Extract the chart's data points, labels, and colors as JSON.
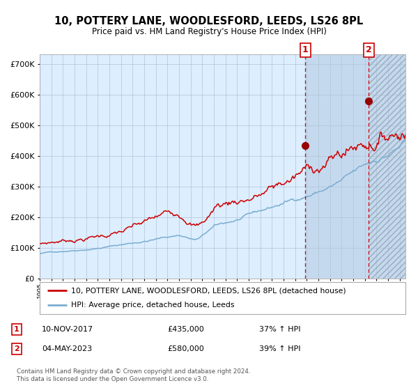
{
  "title": "10, POTTERY LANE, WOODLESFORD, LEEDS, LS26 8PL",
  "subtitle": "Price paid vs. HM Land Registry's House Price Index (HPI)",
  "legend_line1": "10, POTTERY LANE, WOODLESFORD, LEEDS, LS26 8PL (detached house)",
  "legend_line2": "HPI: Average price, detached house, Leeds",
  "footnote": "Contains HM Land Registry data © Crown copyright and database right 2024.\nThis data is licensed under the Open Government Licence v3.0.",
  "marker1_date": "10-NOV-2017",
  "marker1_price": "£435,000",
  "marker1_hpi": "37% ↑ HPI",
  "marker1_year": 2017.87,
  "marker1_value": 435000,
  "marker2_date": "04-MAY-2023",
  "marker2_price": "£580,000",
  "marker2_hpi": "39% ↑ HPI",
  "marker2_year": 2023.35,
  "marker2_value": 580000,
  "xlim": [
    1995,
    2026.5
  ],
  "ylim": [
    0,
    730000
  ],
  "red_color": "#cc0000",
  "blue_color": "#7aadcf",
  "bg_plot_color": "#ddeeff",
  "bg_shade_color": "#c5d9ee",
  "grid_color": "#b0c4d8",
  "shaded_region_start": 2017.87,
  "hatch_region_start": 2023.35,
  "hatch_region_end": 2026.5
}
